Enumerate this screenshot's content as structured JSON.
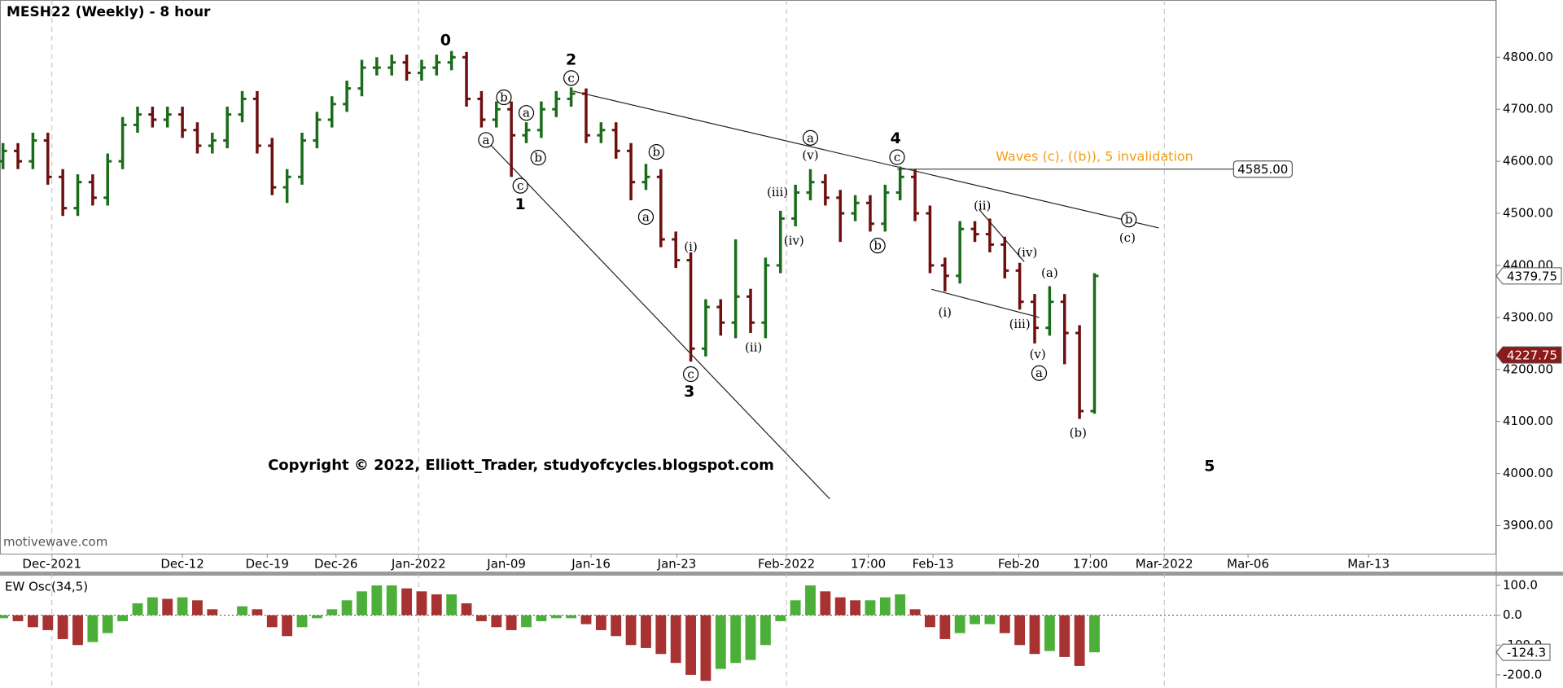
{
  "chart_data": [
    {
      "type": "ohlc",
      "title": "MESH22 (Weekly) - 8 hour",
      "watermark": "motivewave.com",
      "copyright": "Copyright © 2022, Elliott_Trader, studyofcycles.blogspot.com",
      "xlim": [
        -0.2,
        99.87
      ],
      "xticks": [
        {
          "value": 3.27,
          "label": "Dec-2021"
        },
        {
          "value": 12,
          "label": "Dec-12"
        },
        {
          "value": 17.67,
          "label": "Dec-19"
        },
        {
          "value": 22.27,
          "label": "Dec-26"
        },
        {
          "value": 27.8,
          "label": "Jan-2022"
        },
        {
          "value": 33.67,
          "label": "Jan-09"
        },
        {
          "value": 39.33,
          "label": "Jan-16"
        },
        {
          "value": 45.07,
          "label": "Jan-23"
        },
        {
          "value": 52.4,
          "label": "Feb-2022"
        },
        {
          "value": 57.87,
          "label": "17:00"
        },
        {
          "value": 62.2,
          "label": "Feb-13"
        },
        {
          "value": 67.93,
          "label": "Feb-20"
        },
        {
          "value": 72.73,
          "label": "17:00"
        },
        {
          "value": 77.67,
          "label": "Mar-2022"
        },
        {
          "value": 83.27,
          "label": "Mar-06"
        },
        {
          "value": 91.33,
          "label": "Mar-13"
        }
      ],
      "grid_xticks": [
        0,
        4,
        8,
        13
      ],
      "ylim": [
        3846,
        4910
      ],
      "yticks": [
        {
          "value": 3900,
          "label": "3900.00"
        },
        {
          "value": 4000,
          "label": "4000.00"
        },
        {
          "value": 4100,
          "label": "4100.00"
        },
        {
          "value": 4200,
          "label": "4200.00"
        },
        {
          "value": 4300,
          "label": "4300.00"
        },
        {
          "value": 4400,
          "label": "4400.00"
        },
        {
          "value": 4500,
          "label": "4500.00"
        },
        {
          "value": 4600,
          "label": "4600.00"
        },
        {
          "value": 4700,
          "label": "4700.00"
        },
        {
          "value": 4800,
          "label": "4800.00"
        }
      ],
      "up_color": "#1a6b1a",
      "down_color": "#6e0f0f",
      "open": [
        4600,
        4620,
        4600,
        4640,
        4570,
        4510,
        4560,
        4530,
        4600,
        4670,
        4690,
        4680,
        4690,
        4660,
        4630,
        4640,
        4690,
        4720,
        4630,
        4550,
        4570,
        4640,
        4680,
        4710,
        4740,
        4780,
        4780,
        4790,
        4770,
        4780,
        4790,
        4800,
        4720,
        4680,
        4700,
        4650,
        4660,
        4700,
        4720,
        4730,
        4650,
        4660,
        4620,
        4560,
        4570,
        4450,
        4410,
        4240,
        4320,
        4290,
        4340,
        4290,
        4400,
        4490,
        4540,
        4560,
        4530,
        4500,
        4520,
        4480,
        4540,
        4570,
        4500,
        4400,
        4380,
        4470,
        4460,
        4440,
        4390,
        4330,
        4280,
        4330,
        4270,
        4120
      ],
      "high": [
        4635,
        4635,
        4655,
        4655,
        4585,
        4575,
        4575,
        4615,
        4685,
        4705,
        4705,
        4705,
        4705,
        4675,
        4655,
        4705,
        4735,
        4735,
        4645,
        4585,
        4655,
        4695,
        4725,
        4755,
        4795,
        4800,
        4805,
        4805,
        4795,
        4805,
        4812,
        4810,
        4735,
        4715,
        4715,
        4675,
        4715,
        4735,
        4742,
        4740,
        4675,
        4675,
        4635,
        4595,
        4585,
        4465,
        4425,
        4335,
        4335,
        4450,
        4355,
        4415,
        4505,
        4555,
        4585,
        4575,
        4545,
        4535,
        4535,
        4555,
        4590,
        4585,
        4515,
        4415,
        4485,
        4485,
        4490,
        4455,
        4405,
        4345,
        4360,
        4345,
        4285,
        4385
      ],
      "low": [
        4585,
        4585,
        4585,
        4555,
        4495,
        4495,
        4515,
        4515,
        4585,
        4655,
        4665,
        4665,
        4645,
        4615,
        4615,
        4625,
        4675,
        4615,
        4535,
        4520,
        4555,
        4625,
        4665,
        4695,
        4725,
        4765,
        4765,
        4755,
        4755,
        4765,
        4775,
        4705,
        4665,
        4665,
        4570,
        4635,
        4645,
        4685,
        4705,
        4635,
        4635,
        4605,
        4525,
        4545,
        4435,
        4395,
        4215,
        4225,
        4265,
        4260,
        4270,
        4260,
        4385,
        4475,
        4525,
        4515,
        4445,
        4485,
        4465,
        4465,
        4525,
        4485,
        4385,
        4350,
        4365,
        4445,
        4425,
        4375,
        4315,
        4250,
        4265,
        4210,
        4105,
        4115
      ],
      "close": [
        4620,
        4600,
        4640,
        4570,
        4510,
        4560,
        4530,
        4600,
        4670,
        4690,
        4680,
        4690,
        4660,
        4630,
        4640,
        4690,
        4720,
        4630,
        4550,
        4570,
        4640,
        4680,
        4710,
        4740,
        4780,
        4780,
        4790,
        4770,
        4780,
        4790,
        4800,
        4720,
        4680,
        4700,
        4650,
        4660,
        4700,
        4720,
        4730,
        4650,
        4660,
        4620,
        4560,
        4570,
        4450,
        4410,
        4240,
        4320,
        4290,
        4340,
        4290,
        4400,
        4490,
        4540,
        4560,
        4530,
        4500,
        4520,
        4480,
        4540,
        4570,
        4500,
        4400,
        4380,
        4470,
        4460,
        4440,
        4390,
        4330,
        4280,
        4330,
        4270,
        4120,
        4379.75
      ],
      "last_price": {
        "value": 4379.75,
        "label": "4379.75"
      },
      "marker_price": {
        "value": 4227.75,
        "label": "4227.75"
      },
      "invalidation": {
        "text": "Waves (c), ((b)), 5 invalidation",
        "text_x": 73,
        "text_y": 4608,
        "value": 4585,
        "label": "4585.00",
        "x": [
          59.8,
          82.3
        ],
        "color": "#f39c12"
      },
      "trendlines": [
        {
          "x": [
            38.1,
            77.3
          ],
          "y": [
            4735,
            4472
          ]
        },
        {
          "x": [
            32.3,
            55.3
          ],
          "y": [
            4641,
            3951
          ]
        },
        {
          "x": [
            62.1,
            69.3
          ],
          "y": [
            4354,
            4300
          ]
        },
        {
          "x": [
            65.3,
            68.3
          ],
          "y": [
            4507,
            4407
          ]
        }
      ],
      "annotations": [
        {
          "text": "0",
          "x": 29.6,
          "y": 4833,
          "style": "bold"
        },
        {
          "text": "2",
          "x": 38,
          "y": 4796,
          "style": "bold"
        },
        {
          "text": "c",
          "x": 38,
          "y": 4760,
          "style": "circled"
        },
        {
          "text": "b",
          "x": 33.5,
          "y": 4723,
          "style": "circled"
        },
        {
          "text": "a",
          "x": 35,
          "y": 4693,
          "style": "circled"
        },
        {
          "text": "a",
          "x": 32.3,
          "y": 4641,
          "style": "circled"
        },
        {
          "text": "b",
          "x": 35.8,
          "y": 4607,
          "style": "circled"
        },
        {
          "text": "c",
          "x": 34.6,
          "y": 4553,
          "style": "circled"
        },
        {
          "text": "1",
          "x": 34.6,
          "y": 4518,
          "style": "bold"
        },
        {
          "text": "b",
          "x": 43.7,
          "y": 4618,
          "style": "circled"
        },
        {
          "text": "a",
          "x": 43,
          "y": 4493,
          "style": "circled"
        },
        {
          "text": "(i)",
          "x": 46,
          "y": 4436,
          "style": "plain"
        },
        {
          "text": "c",
          "x": 46,
          "y": 4191,
          "style": "circled"
        },
        {
          "text": "3",
          "x": 45.9,
          "y": 4158,
          "style": "bold"
        },
        {
          "text": "(ii)",
          "x": 50.2,
          "y": 4243,
          "style": "plain"
        },
        {
          "text": "(iii)",
          "x": 51.8,
          "y": 4541,
          "style": "plain"
        },
        {
          "text": "(iv)",
          "x": 52.9,
          "y": 4448,
          "style": "plain"
        },
        {
          "text": "a",
          "x": 54,
          "y": 4645,
          "style": "circled"
        },
        {
          "text": "(v)",
          "x": 54,
          "y": 4612,
          "style": "plain"
        },
        {
          "text": "b",
          "x": 58.5,
          "y": 4438,
          "style": "circled"
        },
        {
          "text": "4",
          "x": 59.7,
          "y": 4645,
          "style": "bold"
        },
        {
          "text": "c",
          "x": 59.8,
          "y": 4608,
          "style": "circled"
        },
        {
          "text": "(ii)",
          "x": 65.5,
          "y": 4515,
          "style": "plain"
        },
        {
          "text": "(iv)",
          "x": 68.5,
          "y": 4425,
          "style": "plain"
        },
        {
          "text": "(a)",
          "x": 70,
          "y": 4386,
          "style": "plain"
        },
        {
          "text": "(i)",
          "x": 63,
          "y": 4310,
          "style": "plain"
        },
        {
          "text": "(iii)",
          "x": 68,
          "y": 4287,
          "style": "plain"
        },
        {
          "text": "(v)",
          "x": 69.2,
          "y": 4229,
          "style": "plain"
        },
        {
          "text": "a",
          "x": 69.3,
          "y": 4193,
          "style": "circled"
        },
        {
          "text": "(b)",
          "x": 71.9,
          "y": 4078,
          "style": "plain"
        },
        {
          "text": "b",
          "x": 75.3,
          "y": 4488,
          "style": "circled"
        },
        {
          "text": "(c)",
          "x": 75.2,
          "y": 4453,
          "style": "plain"
        },
        {
          "text": "5",
          "x": 80.7,
          "y": 4015,
          "style": "bold"
        }
      ]
    },
    {
      "type": "bar",
      "title": "EW Osc(34,5)",
      "xlim": [
        -0.2,
        99.87
      ],
      "ylim": [
        -244,
        130
      ],
      "yticks": [
        {
          "value": 100,
          "label": "100.0"
        },
        {
          "value": 0,
          "label": "0.0"
        },
        {
          "value": -100,
          "label": "-100.0"
        },
        {
          "value": -200,
          "label": "-200.0"
        }
      ],
      "up_color": "#4caf3a",
      "down_color": "#a83232",
      "zero_line": true,
      "values": [
        -10,
        -20,
        -40,
        -50,
        -80,
        -100,
        -90,
        -60,
        -20,
        40,
        60,
        55,
        60,
        50,
        20,
        0,
        30,
        20,
        -40,
        -70,
        -40,
        -10,
        20,
        50,
        80,
        100,
        100,
        90,
        80,
        70,
        70,
        40,
        -20,
        -40,
        -50,
        -40,
        -20,
        -10,
        -10,
        -30,
        -50,
        -70,
        -100,
        -110,
        -130,
        -160,
        -200,
        -220,
        -180,
        -160,
        -150,
        -100,
        -20,
        50,
        100,
        80,
        60,
        50,
        50,
        60,
        70,
        20,
        -40,
        -80,
        -60,
        -30,
        -30,
        -60,
        -100,
        -130,
        -120,
        -140,
        -170,
        -124.3
      ],
      "last_value": {
        "value": -124.3,
        "label": "-124.3"
      }
    }
  ]
}
